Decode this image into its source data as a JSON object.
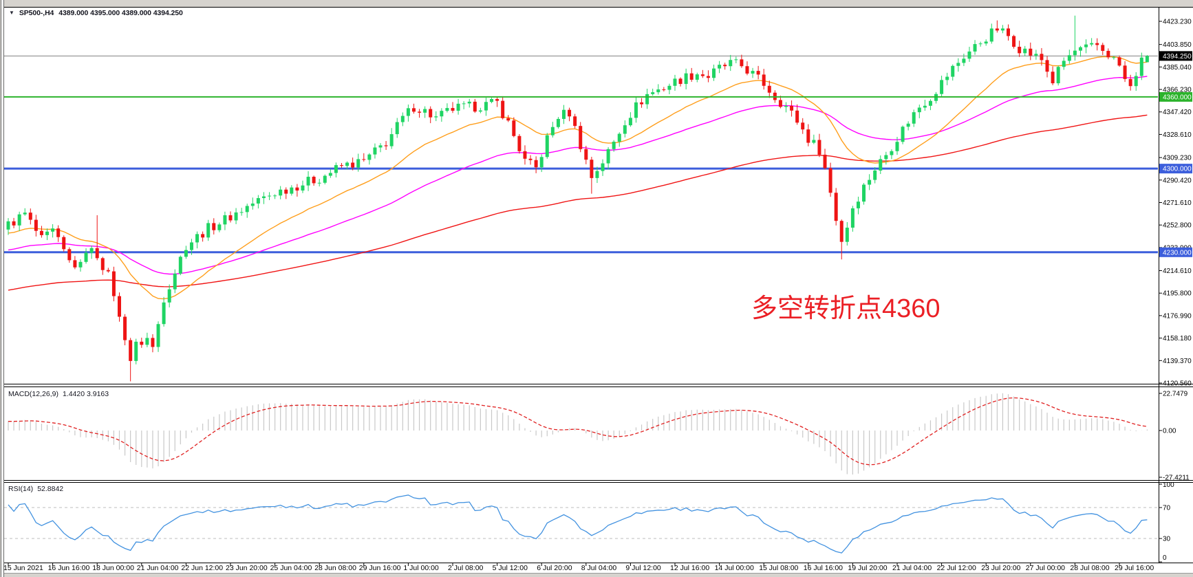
{
  "header": {
    "symbol_timeframe": "SP500-,H4",
    "ohlc": "4389.000 4395.000 4389.000 4394.250"
  },
  "annotation": {
    "text": "多空转折点4360",
    "color": "#EB1F25"
  },
  "indicators": {
    "macd": {
      "label": "MACD(12,26,9)",
      "values": "1.4420 3.9163",
      "scale_labels": [
        "22.7479",
        "0.00",
        "-27.4211"
      ]
    },
    "rsi": {
      "label": "RSI(14)",
      "value": "52.8842",
      "scale_labels": [
        "100",
        "70",
        "30",
        "0"
      ],
      "levels": [
        70,
        30
      ]
    }
  },
  "chart_data": {
    "type": "candlestick",
    "symbol": "SP500-",
    "timeframe": "H4",
    "title": "SP500-,H4 4389.000 4395.000 4389.000 4394.250",
    "n_bars": 206,
    "bars_per_label": 8,
    "x_labels": [
      "15 Jun 2021",
      "16 Jun 16:00",
      "18 Jun 00:00",
      "21 Jun 04:00",
      "22 Jun 12:00",
      "23 Jun 20:00",
      "25 Jun 04:00",
      "28 Jun 08:00",
      "29 Jun 16:00",
      "1 Jul 00:00",
      "2 Jul 08:00",
      "5 Jul 12:00",
      "6 Jul 20:00",
      "8 Jul 04:00",
      "9 Jul 12:00",
      "12 Jul 16:00",
      "14 Jul 00:00",
      "15 Jul 08:00",
      "16 Jul 16:00",
      "19 Jul 20:00",
      "21 Jul 04:00",
      "22 Jul 12:00",
      "23 Jul 20:00",
      "27 Jul 00:00",
      "28 Jul 08:00",
      "29 Jul 16:00"
    ],
    "y_axis_labels": [
      "4423.230",
      "4403.850",
      "4385.040",
      "4366.230",
      "4347.420",
      "4328.610",
      "4309.230",
      "4290.420",
      "4271.610",
      "4252.800",
      "4233.990",
      "4214.610",
      "4195.800",
      "4176.990",
      "4158.180",
      "4139.370",
      "4120.560"
    ],
    "y_range": [
      4120.56,
      4423.23
    ],
    "last_bar": {
      "open": 4389.0,
      "high": 4395.0,
      "low": 4389.0,
      "close": 4394.25
    },
    "price_anchors": [
      [
        0,
        4253
      ],
      [
        3,
        4262
      ],
      [
        6,
        4240
      ],
      [
        8,
        4247
      ],
      [
        11,
        4222
      ],
      [
        13,
        4218
      ],
      [
        14,
        4233
      ],
      [
        16,
        4228
      ],
      [
        18,
        4210
      ],
      [
        19,
        4196
      ],
      [
        20,
        4174
      ],
      [
        21,
        4160
      ],
      [
        22,
        4140
      ],
      [
        23,
        4152
      ],
      [
        25,
        4158
      ],
      [
        26,
        4150
      ],
      [
        27,
        4170
      ],
      [
        28,
        4192
      ],
      [
        30,
        4214
      ],
      [
        32,
        4236
      ],
      [
        36,
        4250
      ],
      [
        40,
        4260
      ],
      [
        44,
        4271
      ],
      [
        48,
        4280
      ],
      [
        52,
        4286
      ],
      [
        56,
        4292
      ],
      [
        60,
        4302
      ],
      [
        64,
        4306
      ],
      [
        66,
        4314
      ],
      [
        68,
        4322
      ],
      [
        71,
        4342
      ],
      [
        73,
        4352
      ],
      [
        75,
        4348
      ],
      [
        77,
        4342
      ],
      [
        80,
        4350
      ],
      [
        84,
        4352
      ],
      [
        88,
        4355
      ],
      [
        90,
        4338
      ],
      [
        93,
        4306
      ],
      [
        95,
        4300
      ],
      [
        97,
        4325
      ],
      [
        99,
        4344
      ],
      [
        101,
        4347
      ],
      [
        103,
        4320
      ],
      [
        105,
        4293
      ],
      [
        107,
        4306
      ],
      [
        109,
        4322
      ],
      [
        111,
        4340
      ],
      [
        113,
        4352
      ],
      [
        115,
        4362
      ],
      [
        118,
        4368
      ],
      [
        121,
        4375
      ],
      [
        124,
        4380
      ],
      [
        126,
        4377
      ],
      [
        128,
        4384
      ],
      [
        130,
        4388
      ],
      [
        132,
        4386
      ],
      [
        134,
        4379
      ],
      [
        136,
        4371
      ],
      [
        138,
        4360
      ],
      [
        140,
        4352
      ],
      [
        142,
        4340
      ],
      [
        144,
        4325
      ],
      [
        146,
        4316
      ],
      [
        147,
        4300
      ],
      [
        148,
        4280
      ],
      [
        149,
        4258
      ],
      [
        150,
        4240
      ],
      [
        151,
        4252
      ],
      [
        152,
        4268
      ],
      [
        154,
        4285
      ],
      [
        156,
        4300
      ],
      [
        158,
        4312
      ],
      [
        160,
        4326
      ],
      [
        162,
        4340
      ],
      [
        164,
        4352
      ],
      [
        166,
        4360
      ],
      [
        168,
        4372
      ],
      [
        170,
        4384
      ],
      [
        172,
        4394
      ],
      [
        174,
        4402
      ],
      [
        176,
        4410
      ],
      [
        178,
        4417
      ],
      [
        180,
        4411
      ],
      [
        182,
        4401
      ],
      [
        184,
        4396
      ],
      [
        186,
        4391
      ],
      [
        188,
        4373
      ],
      [
        190,
        4390
      ],
      [
        192,
        4398
      ],
      [
        194,
        4400
      ],
      [
        196,
        4403
      ],
      [
        198,
        4396
      ],
      [
        200,
        4386
      ],
      [
        201,
        4374
      ],
      [
        202,
        4367
      ],
      [
        203,
        4380
      ],
      [
        204,
        4389
      ],
      [
        205,
        4394.25
      ]
    ],
    "wick_spikes": [
      {
        "bar": 22,
        "low": 4122
      },
      {
        "bar": 105,
        "low": 4279
      },
      {
        "bar": 150,
        "low": 4224
      },
      {
        "bar": 178,
        "high": 4424
      },
      {
        "bar": 192,
        "high": 4428
      },
      {
        "bar": 16,
        "high": 4261
      }
    ],
    "moving_averages": [
      {
        "name": "ma-fast",
        "period": 21,
        "color": "#FF9E1B"
      },
      {
        "name": "ma-mid",
        "period": 55,
        "color": "#FF00FF"
      },
      {
        "name": "ma-slow",
        "period": 144,
        "color": "#F01414"
      }
    ],
    "horizontal_lines": [
      {
        "name": "current-price-line",
        "price": 4394.25,
        "label": "4394.250",
        "line_color": "#808080",
        "badge_bg": "#000000",
        "badge_fg": "#FFFFFF",
        "width": 1,
        "front": false
      },
      {
        "name": "level-4360",
        "price": 4360,
        "label": "4360.000",
        "line_color": "#2BB32B",
        "badge_bg": "#2BB32B",
        "badge_fg": "#FFFFFF",
        "width": 2,
        "front": true
      },
      {
        "name": "level-4300",
        "price": 4300,
        "label": "4300.000",
        "line_color": "#3C5EDC",
        "badge_bg": "#3C5EDC",
        "badge_fg": "#FFFFFF",
        "width": 3,
        "front": false
      },
      {
        "name": "level-4230",
        "price": 4230,
        "label": "4230.000",
        "line_color": "#3C5EDC",
        "badge_bg": "#3C5EDC",
        "badge_fg": "#FFFFFF",
        "width": 3,
        "front": false
      }
    ],
    "colors": {
      "bull": "#1FD463",
      "bear": "#EE1414",
      "background": "#FFFFFF",
      "frame": "#D6D3CE",
      "axis_text": "#000000",
      "macd_hist": "#C8C8C8",
      "macd_signal": "#E02020",
      "rsi_line": "#4292E0",
      "rsi_levels": "#BDBDBD"
    }
  }
}
